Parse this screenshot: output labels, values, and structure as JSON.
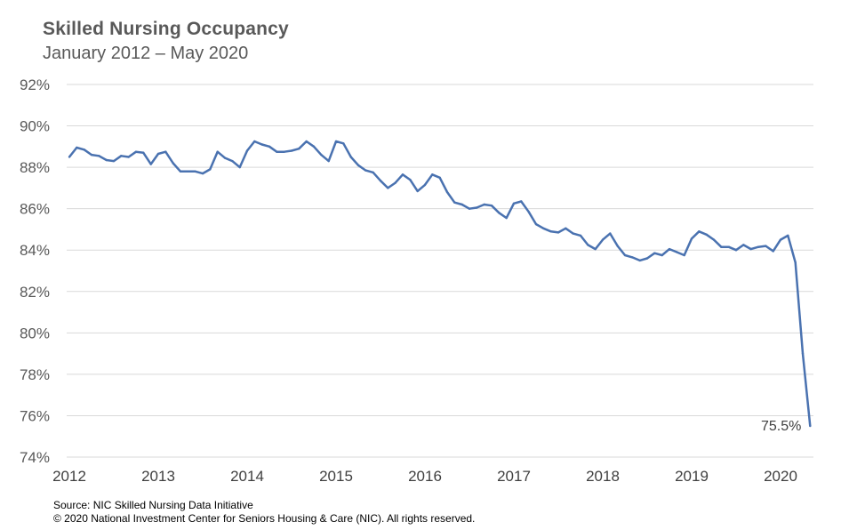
{
  "header": {
    "title": "Skilled Nursing Occupancy",
    "subtitle": "January  2012 – May 2020"
  },
  "footer": {
    "source": "Source: NIC Skilled Nursing Data Initiative",
    "copyright": "© 2020 National Investment Center for Seniors Housing & Care (NIC).  All rights reserved."
  },
  "chart_data": {
    "type": "line",
    "title": "Skilled Nursing Occupancy",
    "subtitle": "January  2012 – May 2020",
    "xlabel": "",
    "ylabel": "",
    "ylim": [
      74,
      92
    ],
    "y_ticks": [
      92,
      90,
      88,
      86,
      84,
      82,
      80,
      78,
      76,
      74
    ],
    "y_tick_labels": [
      "92%",
      "90%",
      "88%",
      "86%",
      "84%",
      "82%",
      "80%",
      "78%",
      "76%",
      "74%"
    ],
    "x_tick_labels": [
      "2012",
      "2013",
      "2014",
      "2015",
      "2016",
      "2017",
      "2018",
      "2019",
      "2020"
    ],
    "grid": "horizontal",
    "line_color": "#4a72b0",
    "x_start": "2012-01",
    "x_end": "2020-05",
    "series": [
      {
        "values": [
          88.5,
          88.95,
          88.85,
          88.6,
          88.55,
          88.35,
          88.3,
          88.55,
          88.5,
          88.75,
          88.7,
          88.15,
          88.65,
          88.75,
          88.2,
          87.8,
          87.8,
          87.8,
          87.7,
          87.9,
          88.75,
          88.45,
          88.3,
          88.0,
          88.8,
          89.25,
          89.1,
          89.0,
          88.75,
          88.75,
          88.8,
          88.9,
          89.25,
          89.0,
          88.6,
          88.3,
          89.25,
          89.15,
          88.5,
          88.1,
          87.85,
          87.75,
          87.35,
          87.0,
          87.25,
          87.65,
          87.4,
          86.85,
          87.15,
          87.65,
          87.5,
          86.8,
          86.3,
          86.2,
          86.0,
          86.05,
          86.2,
          86.15,
          85.8,
          85.55,
          86.25,
          86.35,
          85.85,
          85.25,
          85.05,
          84.9,
          84.85,
          85.05,
          84.8,
          84.7,
          84.25,
          84.05,
          84.5,
          84.8,
          84.2,
          83.75,
          83.65,
          83.5,
          83.6,
          83.85,
          83.75,
          84.05,
          83.9,
          83.75,
          84.55,
          84.9,
          84.75,
          84.5,
          84.15,
          84.15,
          84.0,
          84.25,
          84.05,
          84.15,
          84.2,
          83.95,
          84.5,
          84.7,
          83.4,
          79.0,
          75.5
        ]
      }
    ],
    "annotations": [
      {
        "text": "75.5%",
        "point": "2020-05"
      }
    ]
  }
}
